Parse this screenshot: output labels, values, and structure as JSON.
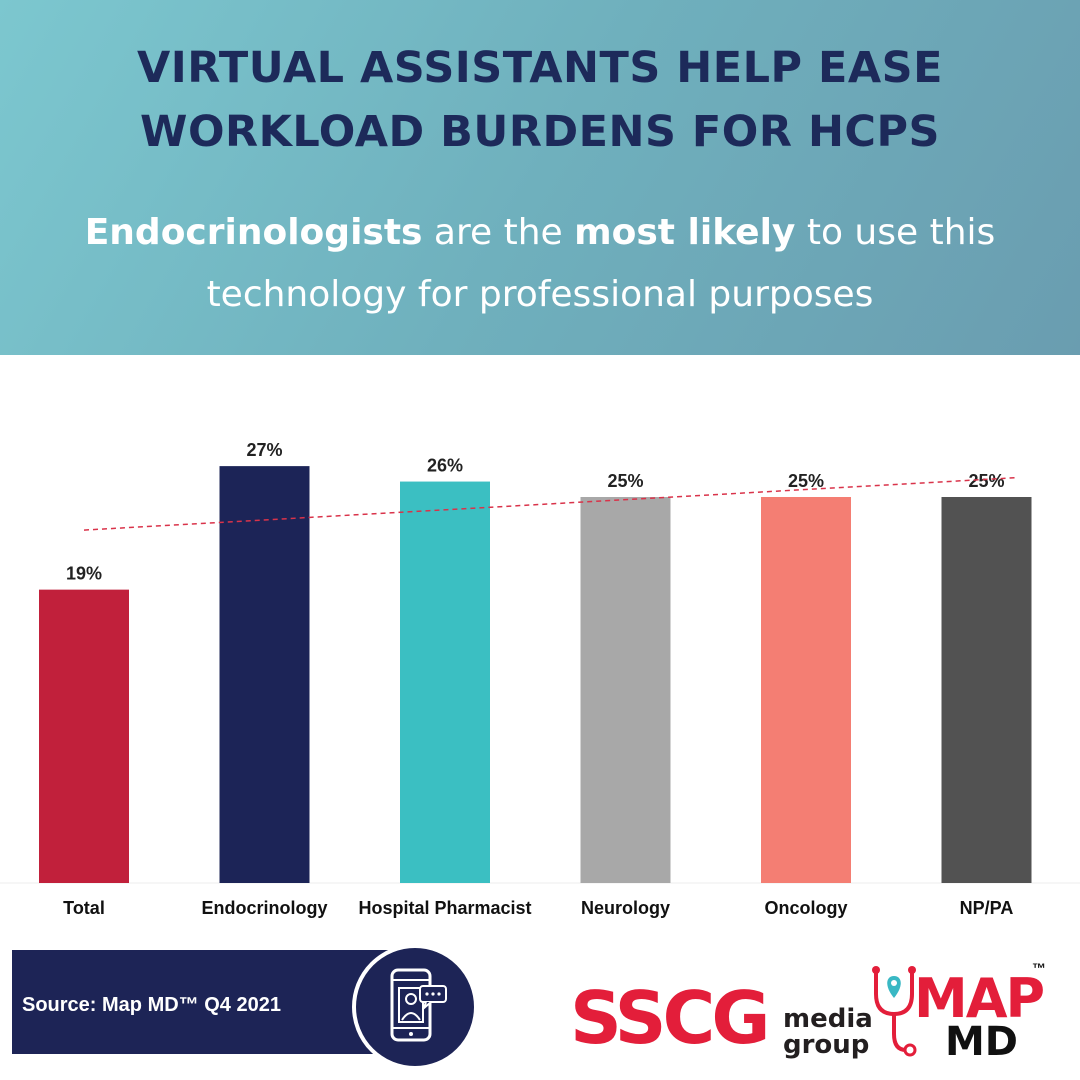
{
  "header": {
    "title_line1": "VIRTUAL ASSISTANTS HELP EASE",
    "title_line2": "WORKLOAD BURDENS FOR HCPS",
    "subtitle_bold1": "Endocrinologists",
    "subtitle_mid": " are the ",
    "subtitle_bold2": "most likely",
    "subtitle_end1": " to use this",
    "subtitle_line2": "technology for professional purposes"
  },
  "chart_data": {
    "type": "bar",
    "categories": [
      "Total",
      "Endocrinology",
      "Hospital Pharmacist",
      "Neurology",
      "Oncology",
      "NP/PA"
    ],
    "values": [
      19,
      27,
      26,
      25,
      25,
      25
    ],
    "value_labels": [
      "19%",
      "27%",
      "26%",
      "25%",
      "25%",
      "25%"
    ],
    "bar_colors": [
      "#c1203b",
      "#1c2457",
      "#3bbfc2",
      "#a8a8a8",
      "#f47e73",
      "#525252"
    ],
    "ylim": [
      0,
      30
    ],
    "grid": false,
    "trendline": {
      "style": "dashed",
      "color": "#d9334a"
    }
  },
  "footer": {
    "source_text": "Source: Map MD™ Q4 2021",
    "sscg_big": "SSCG",
    "sscg_small_1": "media",
    "sscg_small_2": "group",
    "map_text": "MAP",
    "md_text": "MD",
    "tm_text": "™",
    "device_icon": "virtual-assistant-phone-icon"
  }
}
